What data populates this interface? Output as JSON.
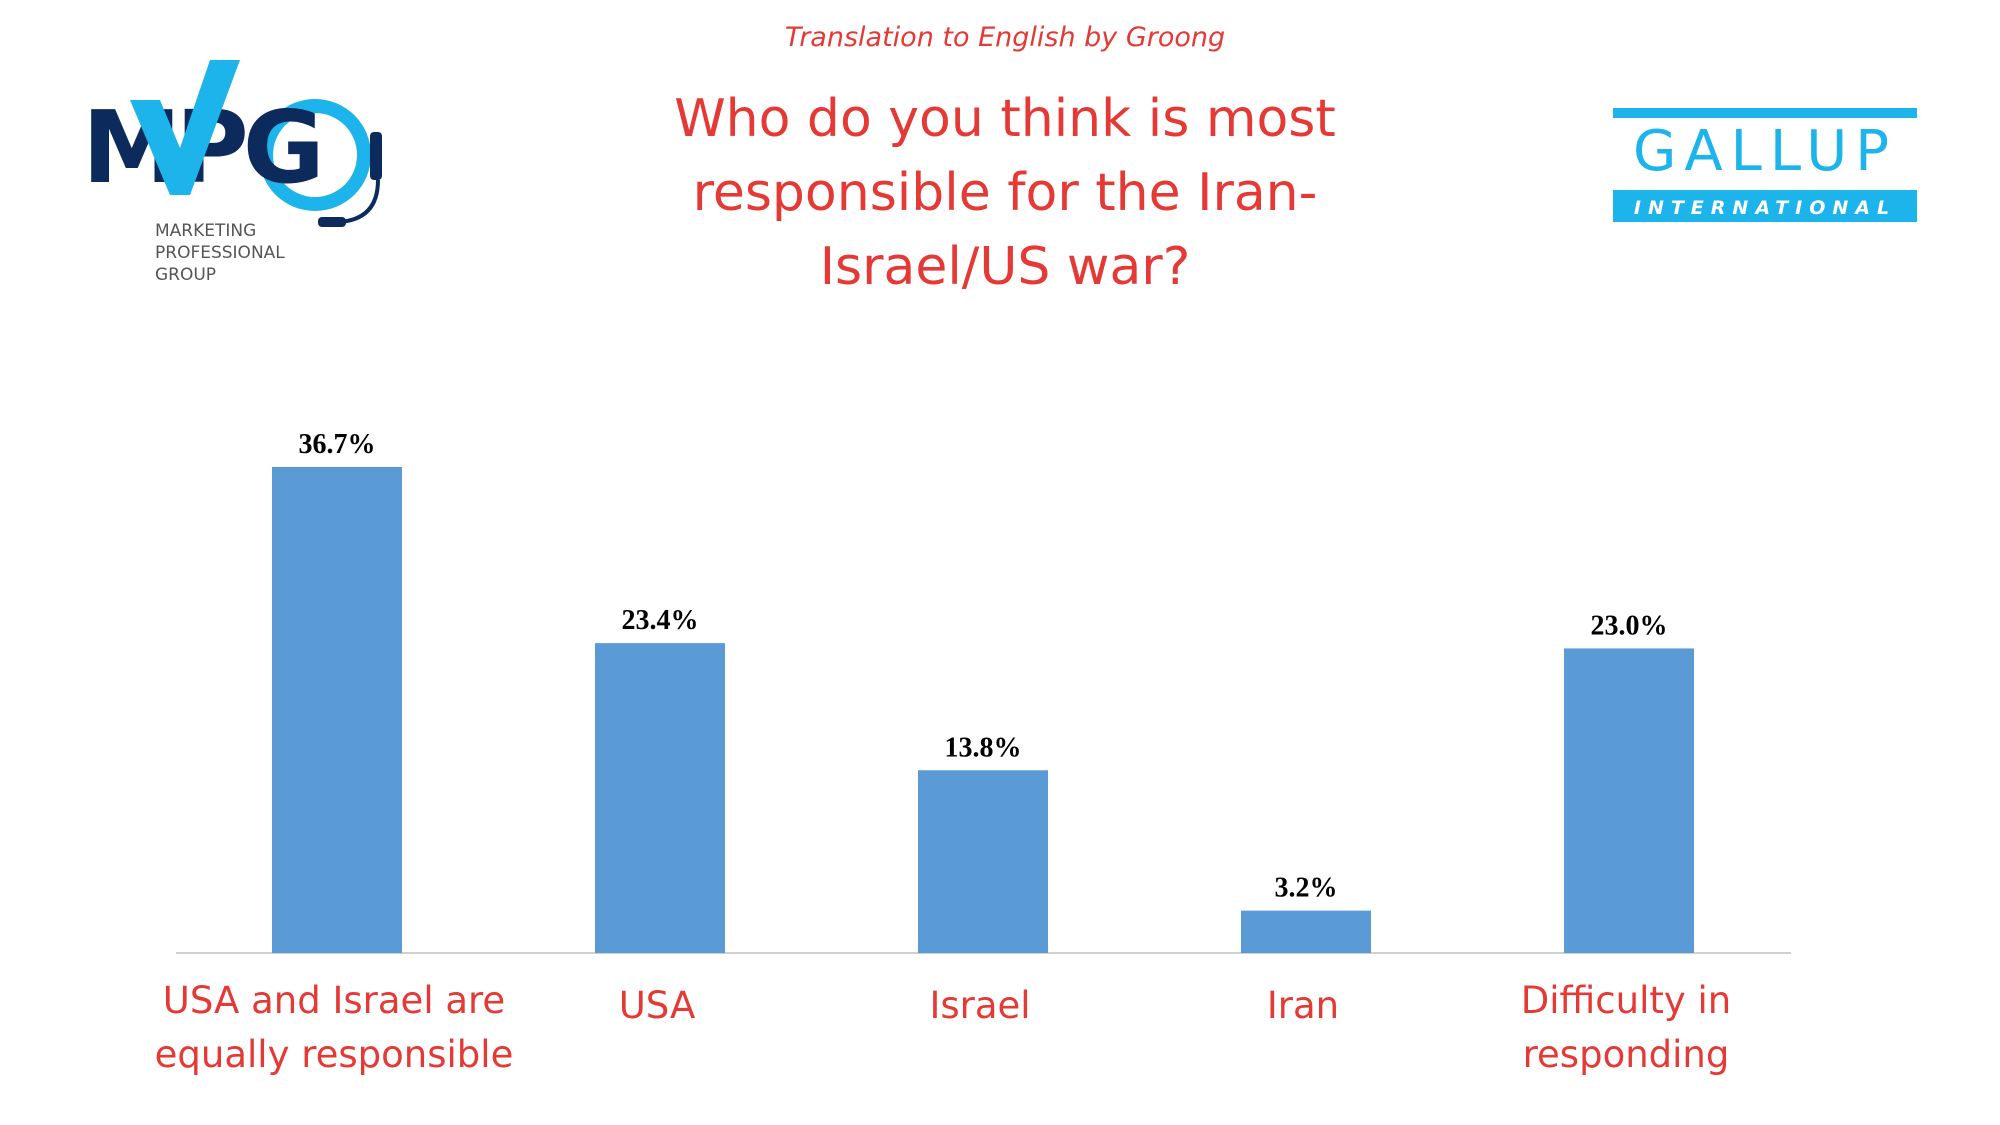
{
  "header": {
    "translation_note": "Translation to English by Groong",
    "title": "Who do you think is most responsible for the Iran-Israel/US war?"
  },
  "logos": {
    "left": {
      "text": "MPG",
      "subtext": [
        "MARKETING",
        "PROFESSIONAL",
        "GROUP"
      ]
    },
    "right": {
      "text": "GALLUP",
      "subtext": "INTERNATIONAL"
    }
  },
  "colors": {
    "bar": "#5b9bd5",
    "title": "#e53935",
    "mpg_dark": "#0d2a5c",
    "mpg_light": "#1cb4ea",
    "gallup": "#1cb4ea"
  },
  "chart_data": {
    "type": "bar",
    "title": "Who do you think is most responsible for the Iran-Israel/US war?",
    "categories": [
      [
        "USA and Israel are",
        "equally responsible"
      ],
      [
        "USA"
      ],
      [
        "Israel"
      ],
      [
        "Iran"
      ],
      [
        "Difficulty in",
        "responding"
      ]
    ],
    "values": [
      36.7,
      23.4,
      13.8,
      3.2,
      23.0
    ],
    "value_labels": [
      "36.7%",
      "23.4%",
      "13.8%",
      "3.2%",
      "23.0%"
    ],
    "unit": "%",
    "ylim": [
      0,
      36.7
    ],
    "grid": false,
    "legend": "none"
  }
}
